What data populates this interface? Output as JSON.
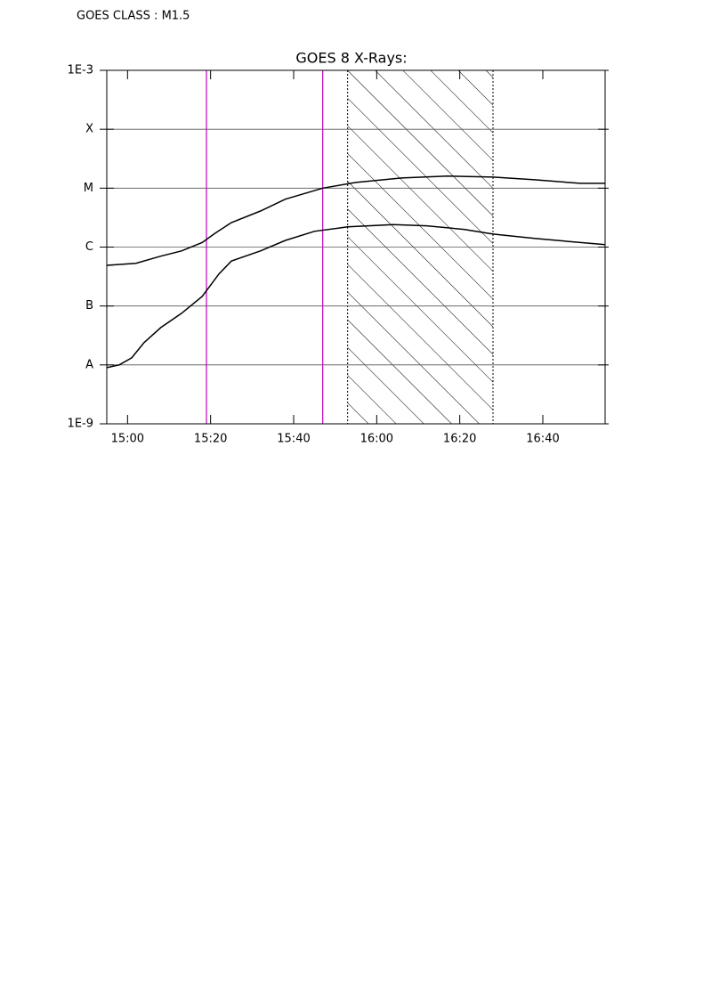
{
  "chart_data": {
    "type": "line",
    "title": "GOES 8 X-Rays:",
    "subtitle": "GOES CLASS : M1.5",
    "log_y": true,
    "grid": true,
    "xlim": [
      "14:55",
      "16:55"
    ],
    "xticks": [
      "15:00",
      "15:20",
      "15:40",
      "16:00",
      "16:20",
      "16:40"
    ],
    "ylim": [
      1e-09,
      0.001
    ],
    "yticks": [
      {
        "value": 1e-09,
        "label": "1E-9"
      },
      {
        "value": 1e-08,
        "label": "A"
      },
      {
        "value": 1e-07,
        "label": "B"
      },
      {
        "value": 1e-06,
        "label": "C"
      },
      {
        "value": 1e-05,
        "label": "M"
      },
      {
        "value": 0.0001,
        "label": "X"
      },
      {
        "value": 0.001,
        "label": "1E-3"
      }
    ],
    "vlines": [
      {
        "x": "15:19",
        "color": "#c000c0"
      },
      {
        "x": "15:47",
        "color": "#c000c0"
      }
    ],
    "shaded_region": {
      "start": "15:53",
      "end": "16:28"
    },
    "series": [
      {
        "color": "#000000",
        "x": [
          "14:55",
          "15:02",
          "15:08",
          "15:13",
          "15:18",
          "15:21",
          "15:25",
          "15:32",
          "15:38",
          "15:47",
          "15:55",
          "16:06",
          "16:17",
          "16:28",
          "16:38",
          "16:49",
          "16:55"
        ],
        "values": [
          4.9e-07,
          5.3e-07,
          7e-07,
          8.6e-07,
          1.2e-06,
          1.7e-06,
          2.6e-06,
          4.1e-06,
          6.5e-06,
          1e-05,
          1.25e-05,
          1.49e-05,
          1.6e-05,
          1.54e-05,
          1.39e-05,
          1.21e-05,
          1.21e-05
        ]
      },
      {
        "color": "#000000",
        "x": [
          "14:55",
          "14:58",
          "15:01",
          "15:04",
          "15:08",
          "15:13",
          "15:18",
          "15:22",
          "15:25",
          "15:32",
          "15:38",
          "15:45",
          "15:53",
          "16:04",
          "16:12",
          "16:21",
          "16:28",
          "16:38",
          "16:55"
        ],
        "values": [
          9e-09,
          1e-08,
          1.32e-08,
          2.4e-08,
          4.3e-08,
          7.5e-08,
          1.46e-07,
          3.5e-07,
          5.8e-07,
          8.6e-07,
          1.3e-06,
          1.85e-06,
          2.2e-06,
          2.4e-06,
          2.3e-06,
          2e-06,
          1.66e-06,
          1.4e-06,
          1.1e-06
        ]
      }
    ]
  }
}
